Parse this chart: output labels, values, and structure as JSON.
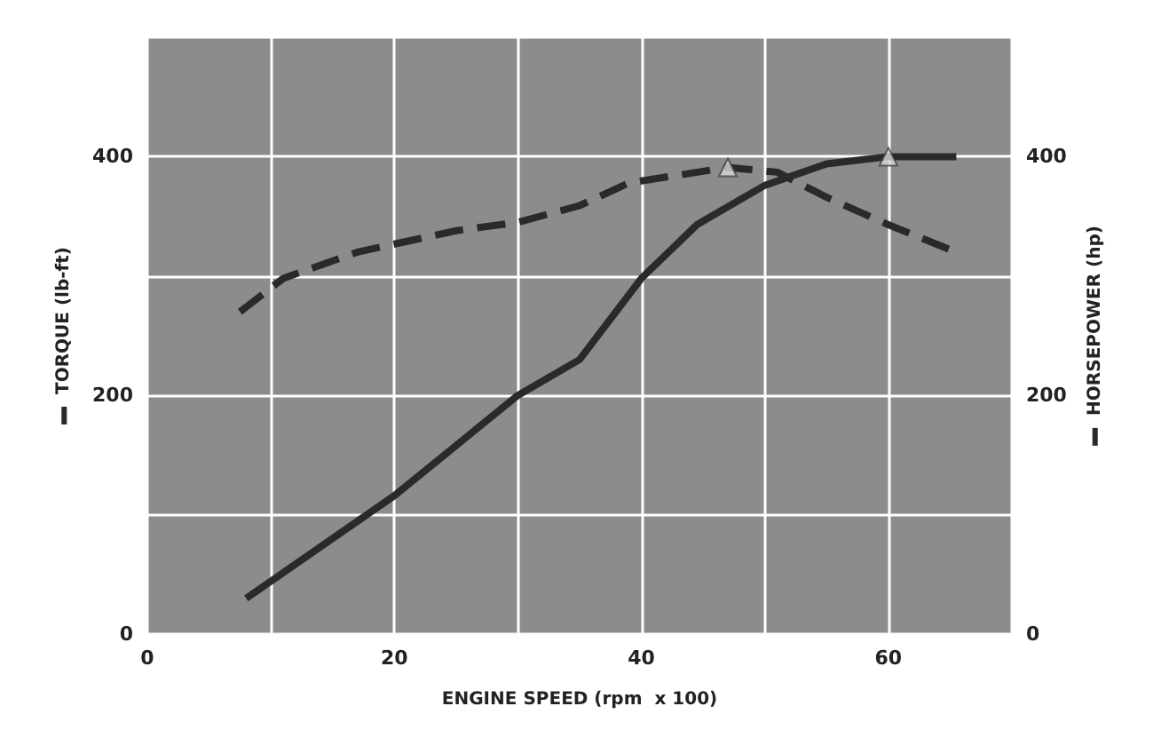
{
  "chart_data": {
    "type": "line",
    "xlabel": "ENGINE SPEED (rpm  x 100)",
    "ylabel": "TORQUE (lb-ft)",
    "y2label": "HORSEPOWER (hp)",
    "xlim": [
      0,
      70
    ],
    "xticks": [
      0,
      {
        "value": 10,
        "label": null
      },
      20,
      {
        "value": 30,
        "label": null
      },
      40,
      {
        "value": 50,
        "label": null
      },
      60,
      {
        "value": 70,
        "label": null
      }
    ],
    "ylim": [
      0,
      500
    ],
    "yticks": [
      0,
      {
        "value": 100,
        "label": null
      },
      200,
      {
        "value": 300,
        "label": null
      },
      400,
      {
        "value": 500,
        "label": null
      }
    ],
    "y2lim": [
      0,
      500
    ],
    "y2ticks": [
      0,
      {
        "value": 100,
        "label": null
      },
      200,
      {
        "value": 300,
        "label": null
      },
      400,
      {
        "value": 500,
        "label": null
      }
    ],
    "grid": true,
    "series": [
      {
        "color": "#2a2a2a",
        "line_style": "dashed",
        "marker": "none",
        "x": [
          7.5,
          11,
          17,
          25,
          30,
          35,
          39,
          47,
          51,
          55,
          60,
          65
        ],
        "values": [
          270,
          298,
          320,
          338,
          345,
          359,
          378,
          391,
          387,
          366,
          343,
          322
        ]
      },
      {
        "color": "#2a2a2a",
        "line_style": "solid",
        "marker": "none",
        "x": [
          8,
          20,
          30,
          35,
          40,
          44.5,
          50,
          55,
          60,
          65.5
        ],
        "values": [
          30,
          116,
          200,
          230,
          298,
          343,
          376,
          394,
          400,
          400
        ]
      },
      {
        "type": "scatter",
        "color": "#d8d8d8",
        "marker": "triangle",
        "x": [
          47
        ],
        "values": [
          391
        ]
      },
      {
        "type": "scatter",
        "color": "#d8d8d8",
        "marker": "triangle",
        "x": [
          60
        ],
        "values": [
          400
        ]
      }
    ]
  }
}
